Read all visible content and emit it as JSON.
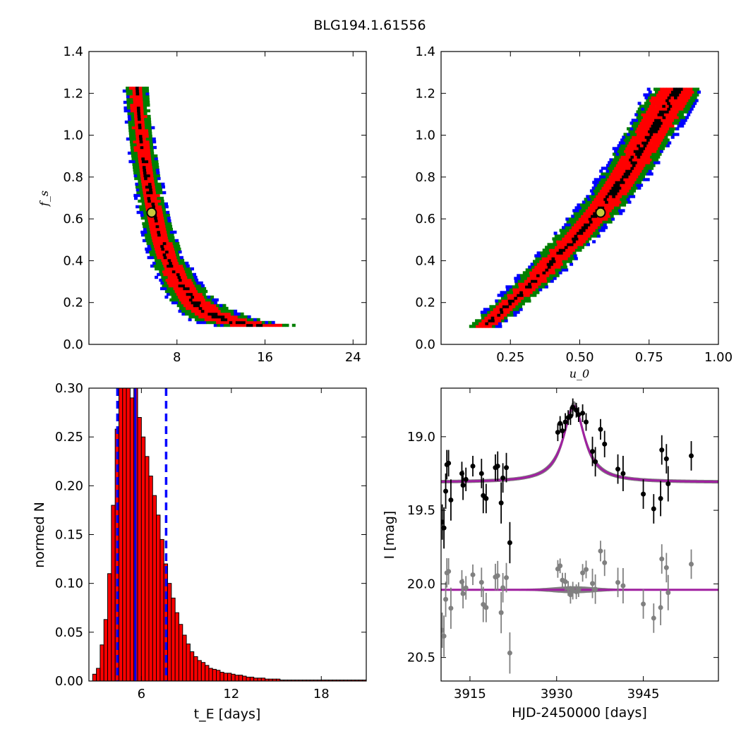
{
  "figure": {
    "title": "BLG194.1.61556"
  },
  "colors": {
    "cl1": "#000000",
    "cl2": "#ff0000",
    "cl3": "#008000",
    "cl4": "#0000ff",
    "marker_fill": "#c8c83c",
    "hist_fill": "#ff0000",
    "fit_line": "#a020a0",
    "model_band": "#808080",
    "residual": "#808080"
  },
  "chart_data": [
    {
      "id": "panel-top-left",
      "type": "heatmap",
      "title": "",
      "xlabel": "",
      "ylabel": "f_s",
      "xlim": [
        0,
        25.2
      ],
      "ylim": [
        0,
        1.4
      ],
      "xticks": [
        8,
        16,
        24
      ],
      "xtick_labels": [
        "8",
        "16",
        "24"
      ],
      "yticks": [
        0.0,
        0.2,
        0.4,
        0.6,
        0.8,
        1.0,
        1.2,
        1.4
      ],
      "ytick_labels": [
        "0.0",
        "0.2",
        "0.4",
        "0.6",
        "0.8",
        "1.0",
        "1.2",
        "1.4"
      ],
      "levels": [
        "blue",
        "green",
        "red",
        "black"
      ],
      "ridge": {
        "fs": [
          1.22,
          1.1,
          1.0,
          0.9,
          0.8,
          0.7,
          0.6,
          0.5,
          0.4,
          0.3,
          0.2,
          0.15,
          0.12,
          0.1,
          0.085
        ],
        "tE": [
          4.2,
          4.35,
          4.55,
          4.8,
          5.1,
          5.45,
          5.85,
          6.35,
          7.05,
          8.0,
          9.4,
          10.6,
          11.8,
          13.2,
          15.0
        ],
        "red_width": [
          1.0,
          1.0,
          1.05,
          1.1,
          1.15,
          1.2,
          1.3,
          1.4,
          1.6,
          1.9,
          2.3,
          2.8,
          3.3,
          3.8,
          4.5
        ],
        "outer_width": [
          2.1,
          2.1,
          2.2,
          2.3,
          2.4,
          2.5,
          2.6,
          2.8,
          3.1,
          3.5,
          4.2,
          5.0,
          5.8,
          6.5,
          7.2
        ]
      },
      "best_fit": {
        "x": 5.7,
        "y": 0.63
      }
    },
    {
      "id": "panel-top-right",
      "type": "heatmap",
      "title": "",
      "xlabel": "u_0",
      "ylabel": "",
      "xlim": [
        0,
        1.0
      ],
      "ylim": [
        0,
        1.4
      ],
      "xticks": [
        0.25,
        0.5,
        0.75,
        1.0
      ],
      "xtick_labels": [
        "0.25",
        "0.50",
        "0.75",
        "1.00"
      ],
      "yticks": [
        0.0,
        0.2,
        0.4,
        0.6,
        0.8,
        1.0,
        1.2,
        1.4
      ],
      "ytick_labels": [
        "0.0",
        "0.2",
        "0.4",
        "0.6",
        "0.8",
        "1.0",
        "1.2",
        "1.4"
      ],
      "levels": [
        "blue",
        "green",
        "red",
        "black"
      ],
      "ridge": {
        "fs": [
          0.08,
          0.15,
          0.25,
          0.35,
          0.45,
          0.55,
          0.65,
          0.75,
          0.85,
          0.95,
          1.05,
          1.15,
          1.22
        ],
        "u0": [
          0.15,
          0.21,
          0.29,
          0.37,
          0.44,
          0.51,
          0.575,
          0.63,
          0.68,
          0.725,
          0.77,
          0.815,
          0.85
        ],
        "red_width": [
          0.06,
          0.065,
          0.07,
          0.075,
          0.08,
          0.085,
          0.09,
          0.095,
          0.1,
          0.105,
          0.11,
          0.115,
          0.12
        ],
        "outer_width": [
          0.11,
          0.12,
          0.13,
          0.14,
          0.15,
          0.16,
          0.165,
          0.17,
          0.175,
          0.18,
          0.185,
          0.19,
          0.19
        ]
      },
      "best_fit": {
        "x": 0.575,
        "y": 0.63
      }
    },
    {
      "id": "panel-bottom-left",
      "type": "bar",
      "title": "",
      "xlabel": "t_E [days]",
      "ylabel": "normed N",
      "xlim": [
        2.5,
        21
      ],
      "ylim": [
        0,
        0.3
      ],
      "xticks": [
        6,
        12,
        18
      ],
      "xtick_labels": [
        "6",
        "12",
        "18"
      ],
      "yticks": [
        0.0,
        0.05,
        0.1,
        0.15,
        0.2,
        0.25,
        0.3
      ],
      "ytick_labels": [
        "0.00",
        "0.05",
        "0.10",
        "0.15",
        "0.20",
        "0.25",
        "0.30"
      ],
      "bin_start": 2.75,
      "bin_width": 0.25,
      "values": [
        0.007,
        0.013,
        0.037,
        0.063,
        0.11,
        0.18,
        0.258,
        0.3,
        0.3,
        0.3,
        0.29,
        0.3,
        0.27,
        0.25,
        0.23,
        0.21,
        0.19,
        0.17,
        0.145,
        0.12,
        0.1,
        0.085,
        0.07,
        0.058,
        0.047,
        0.038,
        0.03,
        0.025,
        0.021,
        0.019,
        0.016,
        0.013,
        0.012,
        0.011,
        0.009,
        0.008,
        0.008,
        0.007,
        0.006,
        0.006,
        0.005,
        0.004,
        0.004,
        0.003,
        0.003,
        0.003,
        0.002,
        0.002,
        0.002,
        0.002,
        0.001,
        0.001,
        0.001,
        0.001,
        0.001,
        0.001,
        0.001,
        0.001,
        0.001,
        0.001,
        0.001,
        0.001,
        0.001,
        0.001,
        0.001,
        0.001,
        0.001,
        0.001,
        0.001,
        0.001,
        0.001,
        0.001,
        0.001
      ],
      "median": 5.6,
      "dashed_lines": [
        4.4,
        7.65
      ]
    },
    {
      "id": "panel-bottom-right",
      "type": "line",
      "title": "",
      "xlabel": "HJD-2450000 [days]",
      "ylabel": "I [mag]",
      "xlim": [
        3910,
        3958
      ],
      "ylim": [
        20.66,
        18.67
      ],
      "xticks": [
        3915,
        3930,
        3945
      ],
      "xtick_labels": [
        "3915",
        "3930",
        "3945"
      ],
      "yticks": [
        19.0,
        19.5,
        20.0,
        20.5
      ],
      "ytick_labels": [
        "19.0",
        "19.5",
        "20.0",
        "20.5"
      ],
      "model": {
        "t0": 3933.0,
        "baseline": 19.31,
        "peak": 18.79,
        "tau": 2.2
      },
      "residual_baseline": 20.04,
      "data": {
        "t": [
          3910.2,
          3910.5,
          3910.8,
          3911.0,
          3911.3,
          3911.7,
          3913.6,
          3913.8,
          3914.3,
          3915.5,
          3917.0,
          3917.3,
          3917.8,
          3919.4,
          3919.8,
          3920.4,
          3920.7,
          3921.3,
          3921.9,
          3930.2,
          3930.6,
          3931.0,
          3931.5,
          3932.0,
          3932.4,
          3932.8,
          3933.4,
          3933.8,
          3934.5,
          3935.1,
          3936.2,
          3936.7,
          3937.6,
          3938.3,
          3940.6,
          3941.5,
          3945.0,
          3946.8,
          3948.0,
          3949.0,
          3948.2,
          3949.3,
          3953.3
        ],
        "mag": [
          19.58,
          19.62,
          19.37,
          19.19,
          19.18,
          19.43,
          19.25,
          19.33,
          19.29,
          19.2,
          19.25,
          19.4,
          19.42,
          19.21,
          19.2,
          19.45,
          19.28,
          19.21,
          19.72,
          18.97,
          18.91,
          18.96,
          18.9,
          18.87,
          18.86,
          18.8,
          18.82,
          18.85,
          18.84,
          18.9,
          19.1,
          19.17,
          18.95,
          19.05,
          19.22,
          19.25,
          19.39,
          19.49,
          19.42,
          19.15,
          19.09,
          19.32,
          19.13
        ],
        "err": [
          0.12,
          0.14,
          0.12,
          0.1,
          0.09,
          0.14,
          0.08,
          0.1,
          0.08,
          0.07,
          0.1,
          0.12,
          0.1,
          0.09,
          0.1,
          0.14,
          0.1,
          0.1,
          0.14,
          0.06,
          0.05,
          0.05,
          0.06,
          0.05,
          0.06,
          0.06,
          0.05,
          0.05,
          0.06,
          0.06,
          0.1,
          0.1,
          0.07,
          0.09,
          0.1,
          0.12,
          0.1,
          0.1,
          0.12,
          0.1,
          0.1,
          0.12,
          0.1
        ]
      }
    }
  ]
}
